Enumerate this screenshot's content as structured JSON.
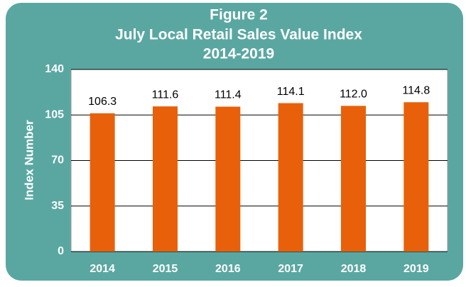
{
  "chart_data": {
    "type": "bar",
    "title": [
      "Figure 2",
      "July Local Retail Sales Value Index",
      "2014-2019"
    ],
    "y_label": "Index Number",
    "categories": [
      "2014",
      "2015",
      "2016",
      "2017",
      "2018",
      "2019"
    ],
    "values": [
      106.3,
      111.6,
      111.4,
      114.1,
      112.0,
      114.8
    ],
    "value_labels": [
      "106.3",
      "111.6",
      "111.4",
      "114.1",
      "112.0",
      "114.8"
    ],
    "color": "#e8600a",
    "ylim": [
      0,
      140
    ],
    "yticks": [
      0,
      35,
      70,
      105,
      140
    ],
    "grid": true
  }
}
